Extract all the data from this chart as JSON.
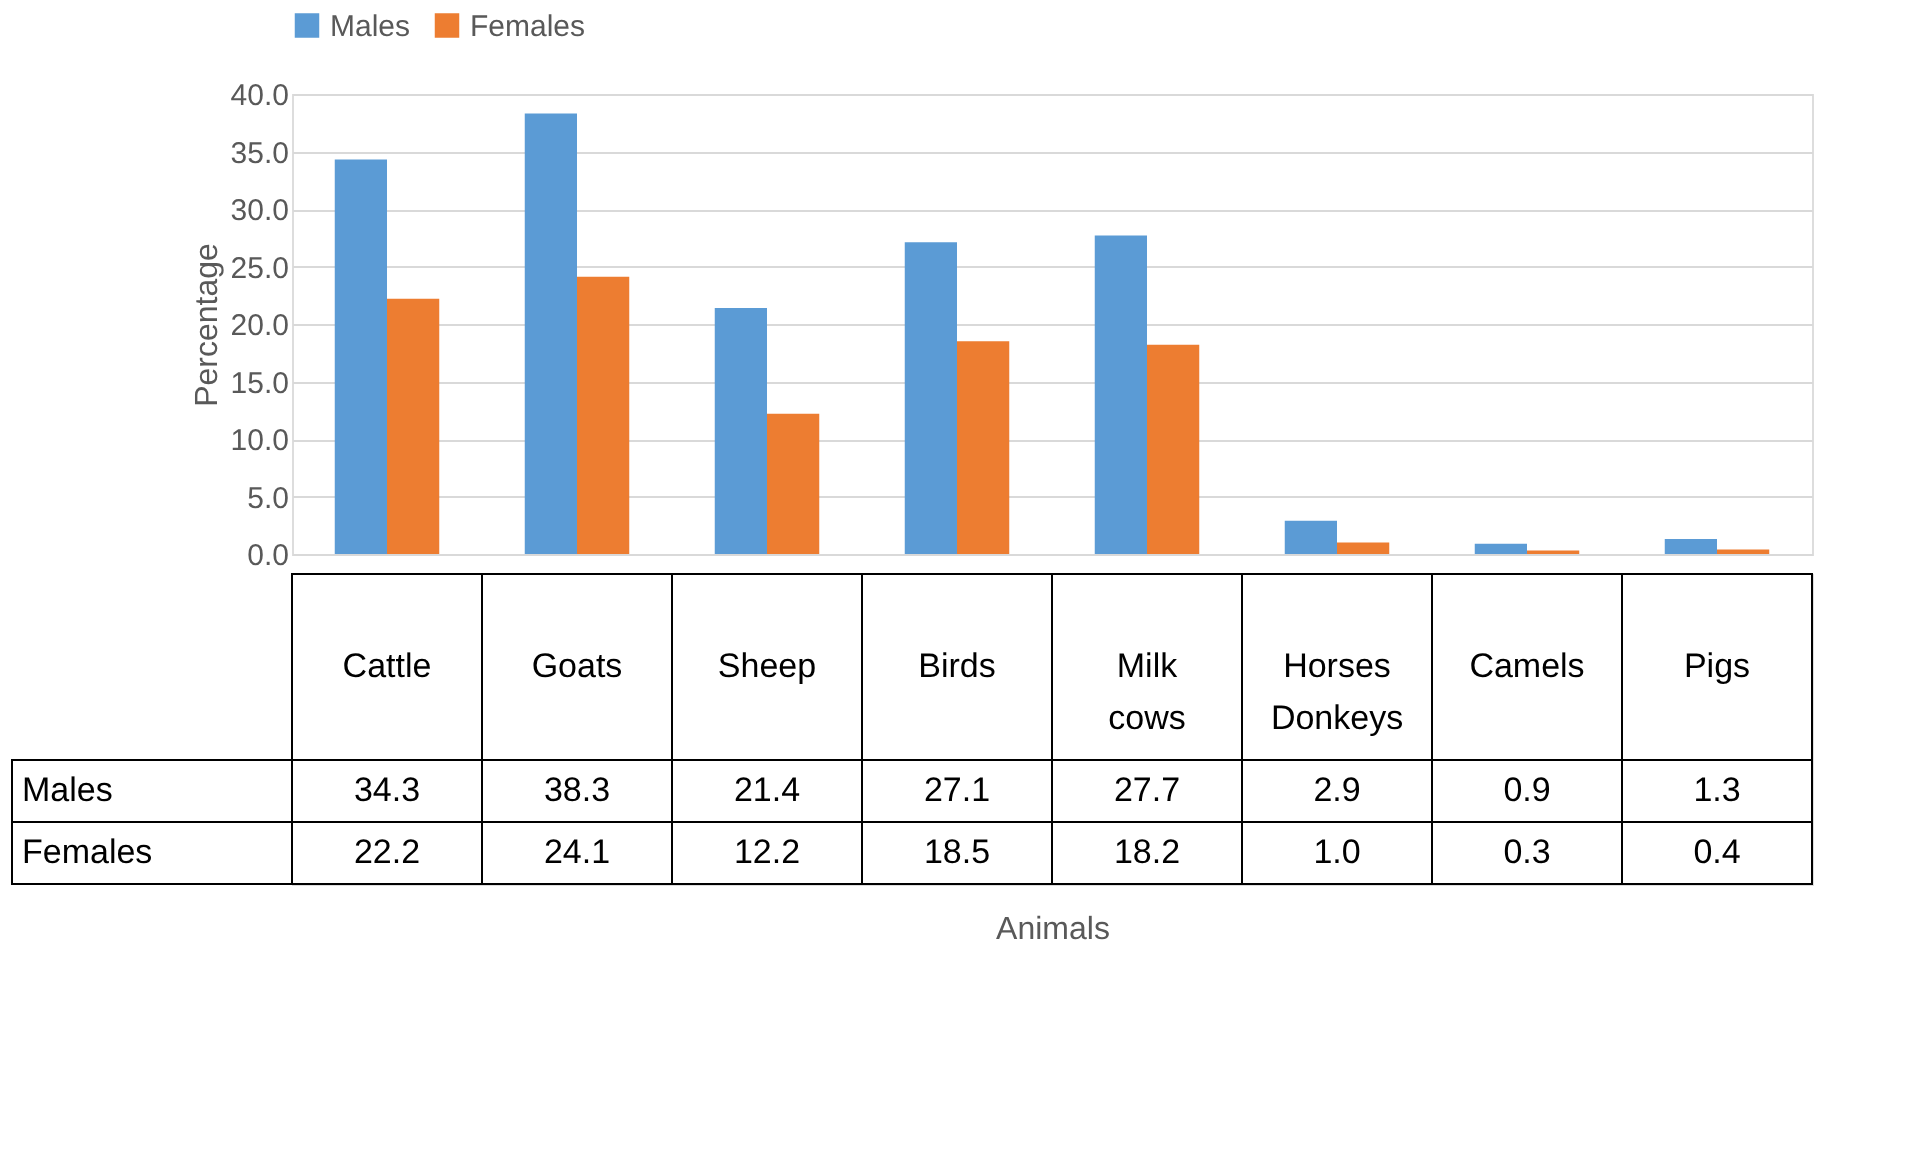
{
  "chart_data": {
    "type": "bar",
    "categories": [
      "Cattle",
      "Goats",
      "Sheep",
      "Birds",
      "Milk cows",
      "Horses Donkeys",
      "Camels",
      "Pigs"
    ],
    "series": [
      {
        "name": "Males",
        "color": "#5b9bd5",
        "values": [
          34.3,
          38.3,
          21.4,
          27.1,
          27.7,
          2.9,
          0.9,
          1.3
        ],
        "value_labels": [
          "34.3",
          "38.3",
          "21.4",
          "27.1",
          "27.7",
          "2.9",
          "0.9",
          "1.3"
        ]
      },
      {
        "name": "Females",
        "color": "#ed7d31",
        "values": [
          22.2,
          24.1,
          12.2,
          18.5,
          18.2,
          1.0,
          0.3,
          0.4
        ],
        "value_labels": [
          "22.2",
          "24.1",
          "12.2",
          "18.5",
          "18.2",
          "1.0",
          "0.3",
          "0.4"
        ]
      }
    ],
    "ylabel": "Percentage",
    "annotations": [
      "Animals"
    ],
    "ylim": [
      0,
      40
    ],
    "yticks": [
      {
        "value": 0,
        "label": "0.0"
      },
      {
        "value": 5,
        "label": "5.0"
      },
      {
        "value": 10,
        "label": "10.0"
      },
      {
        "value": 15,
        "label": "15.0"
      },
      {
        "value": 20,
        "label": "20.0"
      },
      {
        "value": 25,
        "label": "25.0"
      },
      {
        "value": 30,
        "label": "30.0"
      },
      {
        "value": 35,
        "label": "35.0"
      },
      {
        "value": 40,
        "label": "40.0"
      }
    ],
    "grid": "y",
    "legend": "top"
  }
}
